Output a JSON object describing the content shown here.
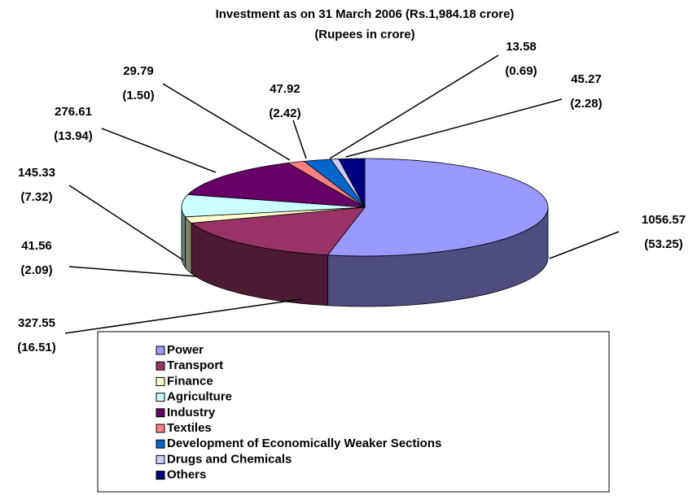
{
  "chart_data": {
    "type": "pie3d",
    "title": "Investment as on 31 March 2006 (Rs.1,984.18 crore)",
    "subtitle": "(Rupees in crore)",
    "categories": [
      "Power",
      "Transport",
      "Finance",
      "Agriculture",
      "Industry",
      "Textiles",
      "Development of Economically Weaker Sections",
      "Drugs and Chemicals",
      "Others"
    ],
    "values": [
      1056.57,
      327.55,
      41.56,
      145.33,
      276.61,
      29.79,
      47.92,
      13.58,
      45.27
    ],
    "percent_labels": [
      "(53.25)",
      "(16.51)",
      "(2.09)",
      "(7.32)",
      "(13.94)",
      "(1.50)",
      "(2.42)",
      "(0.69)",
      "(2.28)"
    ],
    "colors": [
      "#9999ff",
      "#993366",
      "#ffffcc",
      "#ccffff",
      "#660066",
      "#ff8080",
      "#0066cc",
      "#ccccff",
      "#000080"
    ],
    "legend": "bottom"
  }
}
